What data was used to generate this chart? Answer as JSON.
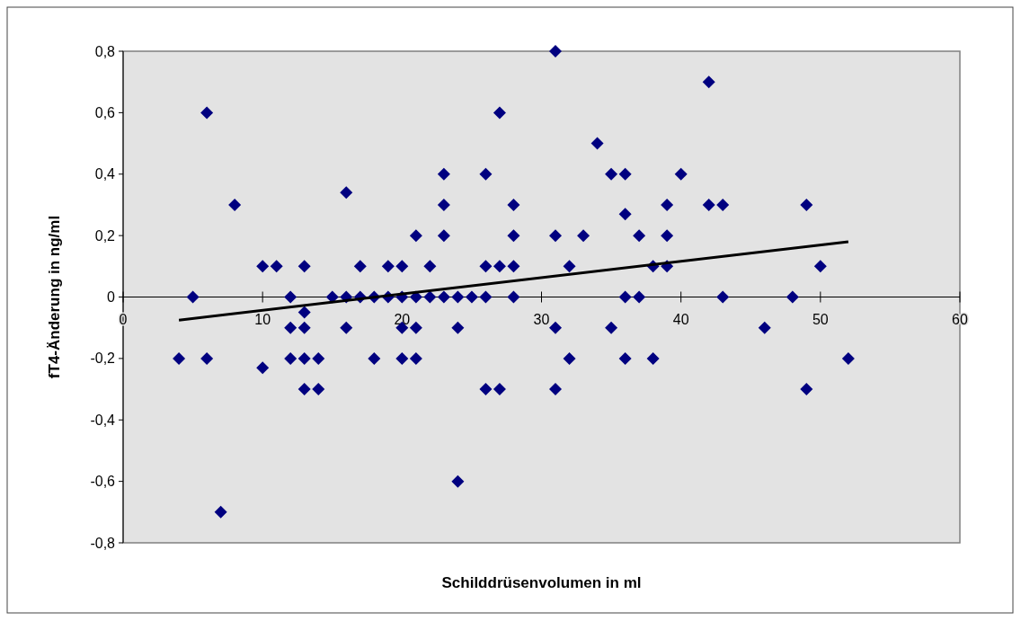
{
  "chart_data": {
    "type": "scatter",
    "xlabel": "Schilddrüsenvolumen in ml",
    "ylabel": "fT4-Änderung in ng/ml",
    "xlim": [
      0,
      60
    ],
    "xticks": [
      0,
      10,
      20,
      30,
      40,
      50,
      60
    ],
    "ylim": [
      -0.8,
      0.8
    ],
    "yticks": [
      {
        "value": -0.8,
        "label": "-0,8"
      },
      {
        "value": -0.6,
        "label": "-0,6"
      },
      {
        "value": -0.4,
        "label": "-0,4"
      },
      {
        "value": -0.2,
        "label": "-0,2"
      },
      0,
      {
        "value": 0.2,
        "label": "0,2"
      },
      {
        "value": 0.4,
        "label": "0,4"
      },
      {
        "value": 0.6,
        "label": "0,6"
      },
      {
        "value": 0.8,
        "label": "0,8"
      }
    ],
    "grid": false,
    "marker": "diamond",
    "series": [
      {
        "color": "#000080",
        "x": [
          4,
          5,
          6,
          6,
          7,
          8,
          10,
          10,
          11,
          12,
          12,
          12,
          13,
          13,
          13,
          13,
          13,
          14,
          14,
          15,
          16,
          16,
          16,
          17,
          17,
          18,
          18,
          19,
          19,
          20,
          20,
          20,
          20,
          21,
          21,
          21,
          21,
          22,
          22,
          23,
          23,
          23,
          23,
          24,
          24,
          24,
          25,
          26,
          26,
          26,
          26,
          27,
          27,
          27,
          28,
          28,
          28,
          28,
          31,
          31,
          31,
          31,
          32,
          32,
          33,
          34,
          35,
          35,
          36,
          36,
          36,
          36,
          37,
          37,
          38,
          38,
          39,
          39,
          39,
          40,
          42,
          42,
          43,
          43,
          46,
          48,
          49,
          49,
          50,
          52
        ],
        "values": [
          -0.2,
          0,
          0.6,
          -0.2,
          -0.7,
          0.3,
          0.1,
          -0.23,
          0.1,
          0,
          -0.1,
          -0.2,
          0.1,
          -0.05,
          -0.1,
          -0.2,
          -0.3,
          -0.2,
          -0.3,
          0,
          0.34,
          0,
          -0.1,
          0.1,
          0,
          0,
          -0.2,
          0.1,
          0,
          0.1,
          0,
          -0.1,
          -0.2,
          0.2,
          0,
          -0.1,
          -0.2,
          0.1,
          0,
          0.4,
          0.3,
          0.2,
          0,
          0,
          -0.1,
          -0.6,
          0,
          0.4,
          0.1,
          0,
          -0.3,
          0.6,
          0.1,
          -0.3,
          0.3,
          0.2,
          0.1,
          0,
          0.8,
          0.2,
          -0.1,
          -0.3,
          0.1,
          -0.2,
          0.2,
          0.5,
          0.4,
          -0.1,
          0.4,
          0.27,
          0,
          -0.2,
          0.2,
          0,
          0.1,
          -0.2,
          0.3,
          0.2,
          0.1,
          0.4,
          0.7,
          0.3,
          0.3,
          0,
          -0.1,
          0,
          0.3,
          -0.3,
          0.1,
          -0.2
        ]
      },
      {
        "type": "line",
        "color": "#000000",
        "marker": "none",
        "line_style": "solid",
        "x": [
          4,
          52
        ],
        "values": [
          -0.075,
          0.18
        ]
      }
    ]
  }
}
